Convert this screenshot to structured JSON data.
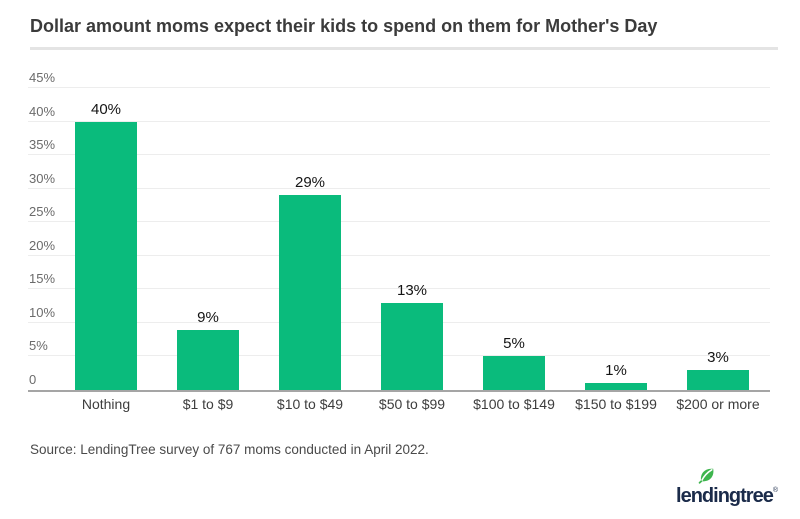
{
  "header": {
    "title": "Dollar amount moms expect their kids to spend on them for Mother's Day"
  },
  "source": {
    "text": "Source: LendingTree survey of 767 moms conducted in April 2022."
  },
  "logo": {
    "brand": "lendingtree",
    "trademark": "®",
    "leaf_icon": "leaf-icon",
    "leaf_color": "#3eb54e",
    "text_color": "#1b2b4a"
  },
  "colors": {
    "bar": "#0abb7c",
    "gridline": "#ededed",
    "axis_line": "#a5a5a5",
    "value_label": "#141414",
    "axis_tick_label": "#6b6b6b",
    "category_label": "#3d3d3d",
    "title": "#3b3b3b"
  },
  "chart_data": {
    "type": "bar",
    "title": "Dollar amount moms expect their kids to spend on them for Mother's Day",
    "categories": [
      "Nothing",
      "$1 to $9",
      "$10 to $49",
      "$50 to $99",
      "$100 to $149",
      "$150 to $199",
      "$200 or more"
    ],
    "values": [
      40,
      9,
      29,
      13,
      5,
      1,
      3
    ],
    "value_labels": [
      "40%",
      "9%",
      "29%",
      "13%",
      "5%",
      "1%",
      "3%"
    ],
    "xlabel": "",
    "ylabel": "",
    "ylim": [
      0,
      45
    ],
    "yticks": [
      {
        "value": 45,
        "label": "45%"
      },
      {
        "value": 40,
        "label": "40%"
      },
      {
        "value": 35,
        "label": "35%"
      },
      {
        "value": 30,
        "label": "30%"
      },
      {
        "value": 25,
        "label": "25%"
      },
      {
        "value": 20,
        "label": "20%"
      },
      {
        "value": 15,
        "label": "15%"
      },
      {
        "value": 10,
        "label": "10%"
      },
      {
        "value": 5,
        "label": "5%"
      },
      {
        "value": 0,
        "label": "0"
      }
    ],
    "grid": true,
    "legend": false,
    "bar_color": "#0abb7c"
  }
}
